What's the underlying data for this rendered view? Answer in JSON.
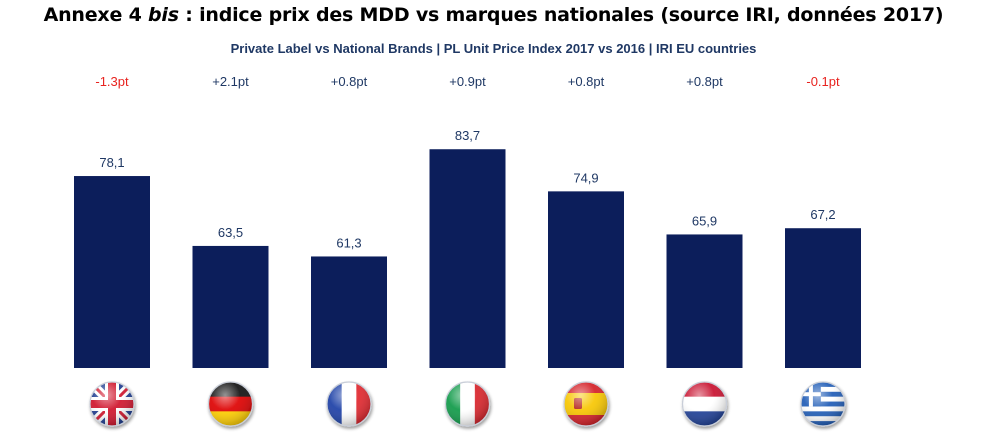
{
  "page": {
    "title_prefix": "Annexe 4 ",
    "title_emphasis": "bis",
    "title_suffix": " : indice prix des MDD vs marques nationales (source IRI, données 2017)"
  },
  "chart_data": {
    "type": "bar",
    "title": "Private Label vs National Brands |  PL Unit Price Index 2017 vs 2016 | IRI EU countries",
    "categories": [
      "UK",
      "Germany",
      "France",
      "Italy",
      "Spain",
      "Netherlands",
      "Greece"
    ],
    "values": [
      78.1,
      63.5,
      61.3,
      83.7,
      74.9,
      65.9,
      67.2
    ],
    "value_labels": [
      "78,1",
      "63,5",
      "61,3",
      "83,7",
      "74,9",
      "65,9",
      "67,2"
    ],
    "changes": [
      "-1.3pt",
      "+2.1pt",
      "+0.8pt",
      "+0.9pt",
      "+0.8pt",
      "+0.8pt",
      "-0.1pt"
    ],
    "category_icons": [
      "uk-flag-icon",
      "germany-flag-icon",
      "france-flag-icon",
      "italy-flag-icon",
      "spain-flag-icon",
      "netherlands-flag-icon",
      "greece-flag-icon"
    ],
    "xlabel": "",
    "ylabel": "",
    "ylim": [
      0,
      100
    ],
    "grid": false,
    "colors": {
      "bar": "#0c1e5b",
      "negative": "#e8231f",
      "positive": "#1f3864",
      "value_label": "#1f3864"
    }
  }
}
